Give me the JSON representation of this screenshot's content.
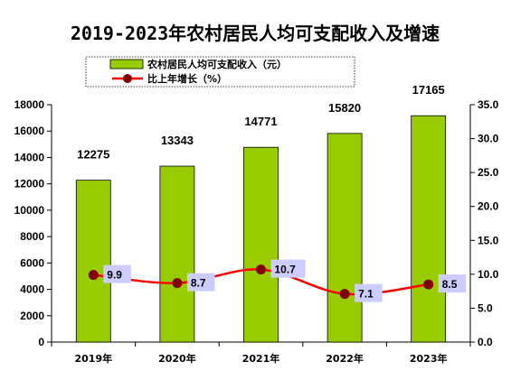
{
  "chart_data": {
    "type": "bar",
    "title": "2019-2023年农村居民人均可支配收入及增速",
    "categories": [
      "2019年",
      "2020年",
      "2021年",
      "2022年",
      "2023年"
    ],
    "series": [
      {
        "name": "农村居民人均可支配收入（元）",
        "type": "bar",
        "axis": "left",
        "values": [
          12275,
          13343,
          14771,
          15820,
          17165
        ],
        "labels": [
          "12275",
          "13343",
          "14771",
          "15820",
          "17165"
        ]
      },
      {
        "name": "比上年增长（%）",
        "type": "line",
        "axis": "right",
        "values": [
          9.9,
          8.7,
          10.7,
          7.1,
          8.5
        ],
        "labels": [
          "9.9",
          "8.7",
          "10.7",
          "7.1",
          "8.5"
        ]
      }
    ],
    "y_left": {
      "min": 0,
      "max": 18000,
      "ticks": [
        "0",
        "2000",
        "4000",
        "6000",
        "8000",
        "10000",
        "12000",
        "14000",
        "16000",
        "18000"
      ]
    },
    "y_right": {
      "min": 0,
      "max": 35,
      "ticks": [
        "0.0",
        "5.0",
        "10.0",
        "15.0",
        "20.0",
        "25.0",
        "30.0",
        "35.0"
      ]
    },
    "legend_position": "top",
    "grid": false,
    "colors": {
      "bar": "#99cc00",
      "line": "#ff0000",
      "marker": "#800000",
      "label_box": "#ccccff"
    }
  }
}
